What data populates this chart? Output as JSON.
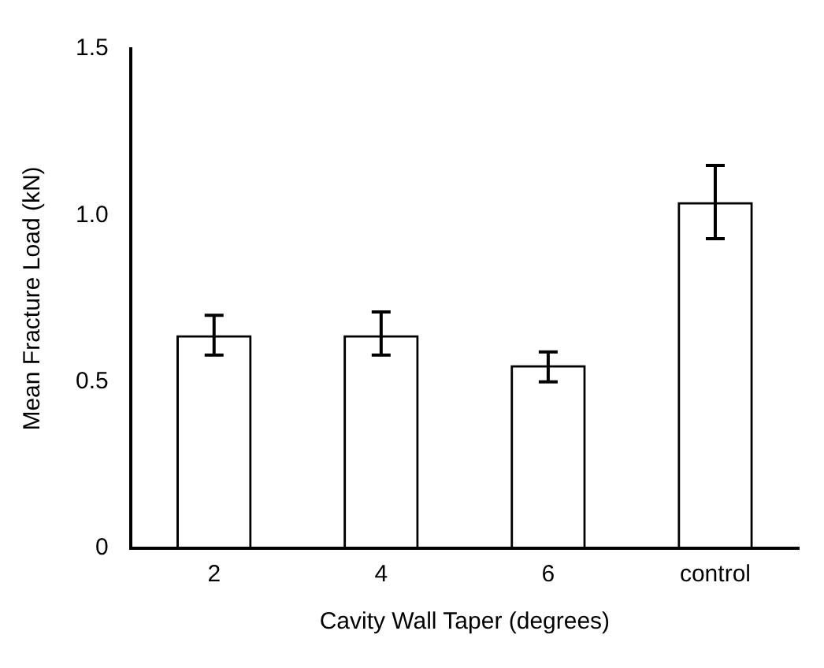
{
  "chart_data": {
    "type": "bar",
    "xlabel": "Cavity Wall Taper (degrees)",
    "ylabel": "Mean Fracture Load (kN)",
    "categories": [
      "2",
      "4",
      "6",
      "control"
    ],
    "values": [
      0.64,
      0.64,
      0.55,
      1.04
    ],
    "errors": [
      [
        0.58,
        0.7
      ],
      [
        0.58,
        0.71
      ],
      [
        0.5,
        0.59
      ],
      [
        0.93,
        1.15
      ]
    ],
    "color": "#000000",
    "ylim": [
      0,
      1.5
    ],
    "yticks": [
      0,
      {
        "value": 0.5,
        "label": "0.5"
      },
      {
        "value": 1.0,
        "label": "1.0"
      },
      {
        "value": 1.5,
        "label": "1.5"
      }
    ],
    "grid": false,
    "legend": false
  }
}
